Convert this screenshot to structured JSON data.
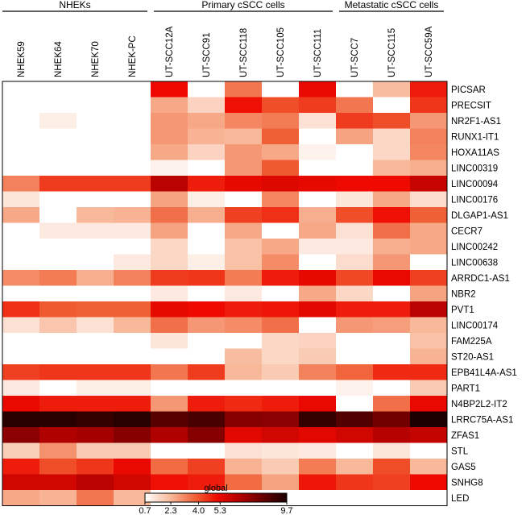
{
  "chart_data": {
    "type": "heatmap",
    "title": "",
    "groups": [
      {
        "label": "NHEKs",
        "start": 0,
        "end": 4
      },
      {
        "label": "Primary cSCC cells",
        "start": 4,
        "end": 9
      },
      {
        "label": "Metastatic cSCC cells",
        "start": 9,
        "end": 12
      }
    ],
    "columns": [
      "NHEK59",
      "NHEK64",
      "NHEK70",
      "NHEK-PC",
      "UT-SCC12A",
      "UT-SCC91",
      "UT-SCC118",
      "UT-SCC105",
      "UT-SCC111",
      "UT-SCC7",
      "UT-SCC115",
      "UT-SCC59A"
    ],
    "rows": [
      "PICSAR",
      "PRECSIT",
      "NR2F1-AS1",
      "RUNX1-IT1",
      "HOXA11AS",
      "LINC00319",
      "LINC00094",
      "LINC00176",
      "DLGAP1-AS1",
      "CECR7",
      "LINC00242",
      "LINC00638",
      "ARRDC1-AS1",
      "NBR2",
      "PVT1",
      "LINC00174",
      "FAM225A",
      "ST20-AS1",
      "EPB41L4A-AS1",
      "PART1",
      "N4BP2L2-IT2",
      "LRRC75A-AS1",
      "ZFAS1",
      "STL",
      "GAS5",
      "SNHG8",
      "LED"
    ],
    "values": [
      [
        0.7,
        0.7,
        0.7,
        0.7,
        5.3,
        0.7,
        3.5,
        0.7,
        5.4,
        0.7,
        2.2,
        5.0
      ],
      [
        0.7,
        0.7,
        0.7,
        0.7,
        2.6,
        1.7,
        5.2,
        4.2,
        4.5,
        3.5,
        0.7,
        4.6
      ],
      [
        0.7,
        1.1,
        0.7,
        0.7,
        2.9,
        2.6,
        3.2,
        3.4,
        1.4,
        4.5,
        4.2,
        2.9
      ],
      [
        0.7,
        0.7,
        0.7,
        0.7,
        2.9,
        2.4,
        2.3,
        3.9,
        0.7,
        2.7,
        1.6,
        3.3
      ],
      [
        0.7,
        0.7,
        0.7,
        0.7,
        2.6,
        1.7,
        2.9,
        2.6,
        1.0,
        0.7,
        1.6,
        3.2
      ],
      [
        0.7,
        0.7,
        0.7,
        0.7,
        1.0,
        0.7,
        2.9,
        4.0,
        0.7,
        0.7,
        2.3,
        2.5
      ],
      [
        3.3,
        4.5,
        4.5,
        4.5,
        6.5,
        5.0,
        5.5,
        5.7,
        5.5,
        5.3,
        5.3,
        6.2
      ],
      [
        1.3,
        0.7,
        0.7,
        0.7,
        2.7,
        1.1,
        0.7,
        3.2,
        0.7,
        1.3,
        2.6,
        1.5
      ],
      [
        2.6,
        0.7,
        2.3,
        2.4,
        3.6,
        2.5,
        4.4,
        4.7,
        2.5,
        4.2,
        5.2,
        3.9
      ],
      [
        0.7,
        1.2,
        1.2,
        1.2,
        2.7,
        0.7,
        2.6,
        0.7,
        2.6,
        1.4,
        3.6,
        2.6
      ],
      [
        0.7,
        0.7,
        0.7,
        0.7,
        1.6,
        0.7,
        2.1,
        2.6,
        1.2,
        1.2,
        2.5,
        2.6
      ],
      [
        0.7,
        0.7,
        0.7,
        1.2,
        1.6,
        1.1,
        2.1,
        3.1,
        0.7,
        1.5,
        2.9,
        0.7
      ],
      [
        3.1,
        3.4,
        2.5,
        3.3,
        4.5,
        4.6,
        3.4,
        5.0,
        5.5,
        4.3,
        5.4,
        4.4
      ],
      [
        0.7,
        0.7,
        0.7,
        0.7,
        1.2,
        0.7,
        1.2,
        0.7,
        2.6,
        1.6,
        0.7,
        2.7
      ],
      [
        4.7,
        4.0,
        3.9,
        3.9,
        5.5,
        5.3,
        5.0,
        5.1,
        5.6,
        5.0,
        5.0,
        6.5
      ],
      [
        1.4,
        2.0,
        1.4,
        2.3,
        3.6,
        2.9,
        3.1,
        3.6,
        0.7,
        2.9,
        2.8,
        2.3
      ],
      [
        0.7,
        0.7,
        0.7,
        0.7,
        1.3,
        0.7,
        0.7,
        1.6,
        1.7,
        0.7,
        0.7,
        2.1
      ],
      [
        0.7,
        0.7,
        0.7,
        0.7,
        0.7,
        0.7,
        2.2,
        1.6,
        1.9,
        0.7,
        0.7,
        2.4
      ],
      [
        4.4,
        4.6,
        4.6,
        4.6,
        3.5,
        4.5,
        2.3,
        1.9,
        3.3,
        3.8,
        4.8,
        4.8
      ],
      [
        1.2,
        0.7,
        1.1,
        1.1,
        0.7,
        0.7,
        0.7,
        0.7,
        0.7,
        1.0,
        0.7,
        1.9
      ],
      [
        5.4,
        5.0,
        5.0,
        5.0,
        2.9,
        5.0,
        4.8,
        5.0,
        5.4,
        0.7,
        3.6,
        5.4
      ],
      [
        9.4,
        9.4,
        9.2,
        9.4,
        8.5,
        8.8,
        7.6,
        7.5,
        9.2,
        8.6,
        8.0,
        9.7
      ],
      [
        7.5,
        6.8,
        7.0,
        7.6,
        6.8,
        7.6,
        5.6,
        6.0,
        5.6,
        6.0,
        6.6,
        6.3
      ],
      [
        1.8,
        3.0,
        1.9,
        1.9,
        0.7,
        0.7,
        1.4,
        1.3,
        1.2,
        0.7,
        1.3,
        0.7
      ],
      [
        5.0,
        4.2,
        4.6,
        5.4,
        3.7,
        4.4,
        2.4,
        1.9,
        3.4,
        2.3,
        4.2,
        2.3
      ],
      [
        6.0,
        6.0,
        6.5,
        6.0,
        5.2,
        5.0,
        3.7,
        2.7,
        5.1,
        4.6,
        4.4,
        5.3
      ],
      [
        2.6,
        2.4,
        3.5,
        2.3,
        0.7,
        0.7,
        0.7,
        0.7,
        0.7,
        0.7,
        0.7,
        0.7
      ]
    ],
    "colorbar": {
      "label": "global",
      "min": 0.7,
      "max": 9.7,
      "ticks": [
        0.7,
        2.3,
        4.0,
        5.3,
        9.7
      ],
      "tick_labels": [
        "0.7",
        "2.3",
        "4.0",
        "5.3",
        "9.7"
      ],
      "stops": [
        {
          "v": 0.7,
          "c": "#ffffff"
        },
        {
          "v": 2.3,
          "c": "#f8b99a"
        },
        {
          "v": 4.0,
          "c": "#f05a30"
        },
        {
          "v": 5.3,
          "c": "#ee0a00"
        },
        {
          "v": 7.0,
          "c": "#a50000"
        },
        {
          "v": 9.7,
          "c": "#1a0000"
        }
      ]
    }
  }
}
